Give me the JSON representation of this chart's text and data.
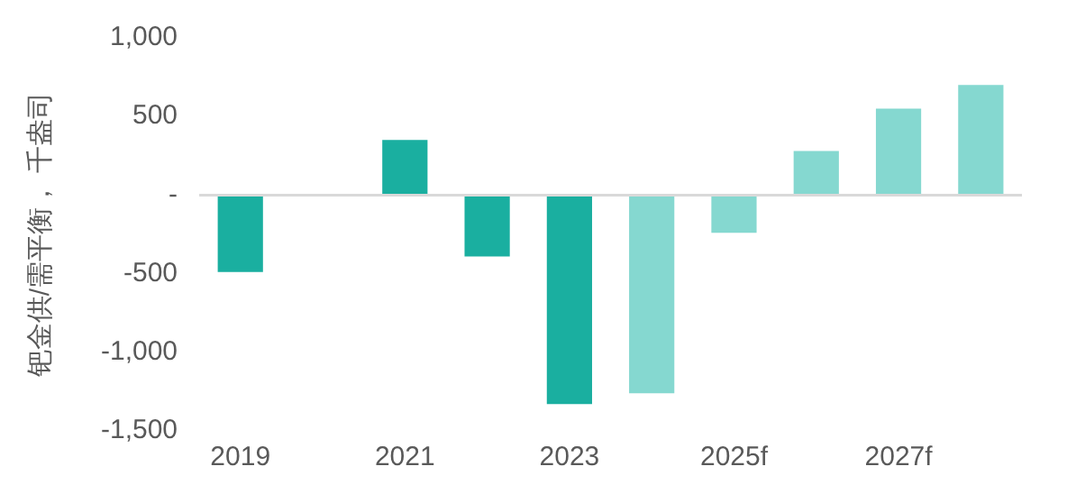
{
  "chart_data": {
    "type": "bar",
    "ylabel": "钯金供/需平衡， 千盎司",
    "categories": [
      "2019",
      null,
      "2021",
      null,
      "2023",
      null,
      "2025f",
      null,
      "2027f",
      null
    ],
    "values": [
      -490,
      null,
      350,
      -390,
      -1330,
      -1260,
      -240,
      280,
      550,
      700
    ],
    "colors": [
      "#1aafa0",
      "#1aafa0",
      "#1aafa0",
      "#1aafa0",
      "#1aafa0",
      "#85d8d0",
      "#85d8d0",
      "#85d8d0",
      "#85d8d0",
      "#85d8d0"
    ],
    "ylim": [
      -1500,
      1000
    ],
    "yticks": [
      {
        "value": -1500,
        "label": "-1,500"
      },
      {
        "value": -1000,
        "label": "-1,000"
      },
      {
        "value": -500,
        "label": "-500"
      },
      {
        "value": 0,
        "label": "-"
      },
      {
        "value": 500,
        "label": "500"
      },
      {
        "value": 1000,
        "label": "1,000"
      }
    ],
    "ref_lines": [
      {
        "axis": "y",
        "value": 0,
        "color": "#d9d9d9"
      }
    ],
    "grid": false,
    "legend": false
  }
}
